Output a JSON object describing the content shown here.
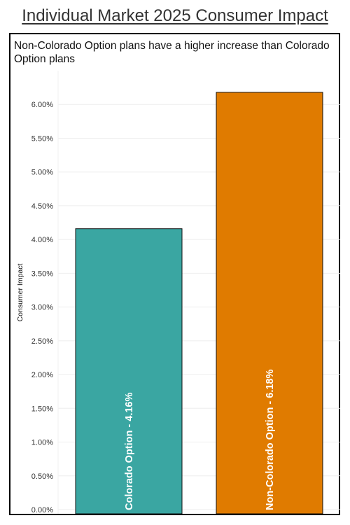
{
  "header": {
    "title": "Individual Market 2025 Consumer Impact",
    "subtitle": "Non-Colorado Option plans have a higher increase than Colorado Option plans"
  },
  "chart_data": {
    "type": "bar",
    "categories": [
      "Colorado Option",
      "Non-Colorado Option"
    ],
    "values": [
      4.16,
      6.18
    ],
    "bar_labels": [
      "Colorado Option - 4.16%",
      "Non-Colorado Option - 6.18%"
    ],
    "colors": [
      "#3aa6a2",
      "#e07b00"
    ],
    "ylabel": "Consumer Impact",
    "ylim": [
      0,
      6.5
    ],
    "yticks": [
      "0.00%",
      "0.50%",
      "1.00%",
      "1.50%",
      "2.00%",
      "2.50%",
      "3.00%",
      "3.50%",
      "4.00%",
      "4.50%",
      "5.00%",
      "5.50%",
      "6.00%"
    ],
    "grid": true
  }
}
